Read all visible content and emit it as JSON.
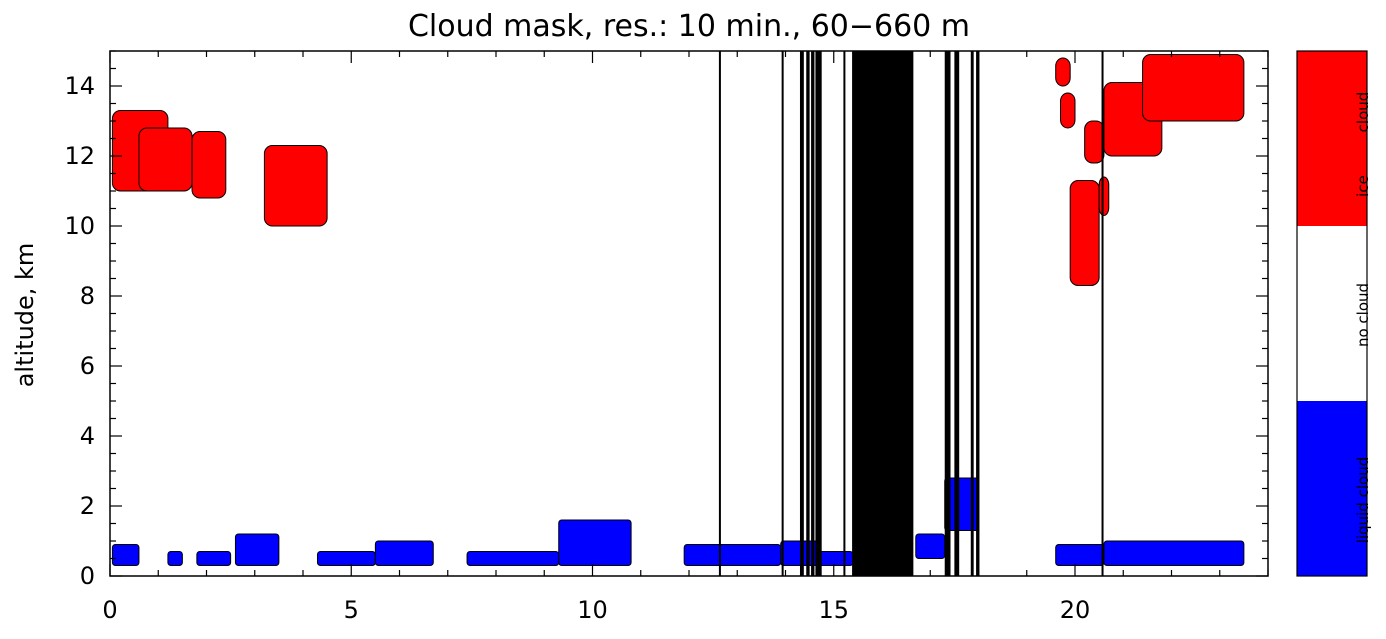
{
  "chart_data": {
    "type": "heatmap",
    "title": "Cloud mask, res.: 10 min., 60−660 m",
    "xlabel": "",
    "ylabel": "altitude, km",
    "xlim": [
      0,
      24
    ],
    "ylim": [
      0,
      15
    ],
    "x_ticks": [
      "0",
      "5",
      "10",
      "15",
      "20"
    ],
    "x_tick_values": [
      0,
      5,
      10,
      15,
      20
    ],
    "y_ticks": [
      "0",
      "2",
      "4",
      "6",
      "8",
      "10",
      "12",
      "14"
    ],
    "y_tick_values": [
      0,
      2,
      4,
      6,
      8,
      10,
      12,
      14
    ],
    "grid": false,
    "categories": [
      {
        "label": "liquid cloud",
        "color": "#0000ff",
        "value": 0
      },
      {
        "label": "no cloud",
        "color": "#ffffff",
        "value": 1
      },
      {
        "label": "ice cloud",
        "color": "#ff0000",
        "value": 2
      }
    ],
    "missing_data_bands_hours": [
      [
        12.62,
        12.66
      ],
      [
        13.92,
        13.96
      ],
      [
        14.3,
        14.38
      ],
      [
        14.43,
        14.5
      ],
      [
        14.53,
        14.6
      ],
      [
        14.62,
        14.75
      ],
      [
        15.2,
        15.24
      ],
      [
        15.38,
        16.65
      ],
      [
        17.3,
        17.42
      ],
      [
        17.5,
        17.6
      ],
      [
        17.84,
        17.9
      ],
      [
        17.95,
        18.02
      ],
      [
        20.55,
        20.59
      ]
    ],
    "ice_cloud_regions": [
      {
        "x": [
          0.05,
          1.2
        ],
        "y": [
          11.0,
          13.3
        ]
      },
      {
        "x": [
          0.6,
          1.7
        ],
        "y": [
          11.0,
          12.8
        ]
      },
      {
        "x": [
          1.7,
          2.4
        ],
        "y": [
          10.8,
          12.7
        ]
      },
      {
        "x": [
          3.2,
          4.5
        ],
        "y": [
          10.0,
          12.3
        ]
      },
      {
        "x": [
          19.6,
          19.9
        ],
        "y": [
          14.0,
          14.8
        ]
      },
      {
        "x": [
          19.7,
          20.0
        ],
        "y": [
          12.8,
          13.8
        ]
      },
      {
        "x": [
          20.2,
          20.6
        ],
        "y": [
          11.8,
          13.0
        ]
      },
      {
        "x": [
          20.6,
          21.8
        ],
        "y": [
          12.0,
          14.1
        ]
      },
      {
        "x": [
          21.4,
          23.5
        ],
        "y": [
          13.0,
          14.9
        ]
      },
      {
        "x": [
          19.9,
          20.5
        ],
        "y": [
          8.3,
          11.3
        ]
      },
      {
        "x": [
          20.5,
          20.7
        ],
        "y": [
          10.3,
          11.4
        ]
      }
    ],
    "liquid_cloud_regions": [
      {
        "x": [
          0.05,
          0.6
        ],
        "y": [
          0.3,
          0.9
        ]
      },
      {
        "x": [
          1.2,
          1.5
        ],
        "y": [
          0.3,
          0.7
        ]
      },
      {
        "x": [
          1.8,
          2.5
        ],
        "y": [
          0.3,
          0.7
        ]
      },
      {
        "x": [
          2.6,
          3.5
        ],
        "y": [
          0.3,
          1.2
        ]
      },
      {
        "x": [
          4.3,
          5.5
        ],
        "y": [
          0.3,
          0.7
        ]
      },
      {
        "x": [
          5.5,
          6.7
        ],
        "y": [
          0.3,
          1.0
        ]
      },
      {
        "x": [
          7.4,
          9.3
        ],
        "y": [
          0.3,
          0.7
        ]
      },
      {
        "x": [
          9.3,
          10.8
        ],
        "y": [
          0.3,
          1.6
        ]
      },
      {
        "x": [
          11.9,
          13.9
        ],
        "y": [
          0.3,
          0.9
        ]
      },
      {
        "x": [
          13.9,
          14.7
        ],
        "y": [
          0.3,
          1.0
        ]
      },
      {
        "x": [
          14.7,
          15.4
        ],
        "y": [
          0.3,
          0.7
        ]
      },
      {
        "x": [
          16.7,
          17.3
        ],
        "y": [
          0.5,
          1.2
        ]
      },
      {
        "x": [
          17.3,
          18.0
        ],
        "y": [
          1.3,
          2.8
        ]
      },
      {
        "x": [
          19.6,
          20.6
        ],
        "y": [
          0.3,
          0.9
        ]
      },
      {
        "x": [
          20.6,
          23.5
        ],
        "y": [
          0.3,
          1.0
        ]
      }
    ]
  },
  "colorbar": {
    "labels": {
      "ice": "ice",
      "cloud": "cloud",
      "no_cloud": "no cloud",
      "liquid_cloud": "liquid cloud"
    }
  }
}
